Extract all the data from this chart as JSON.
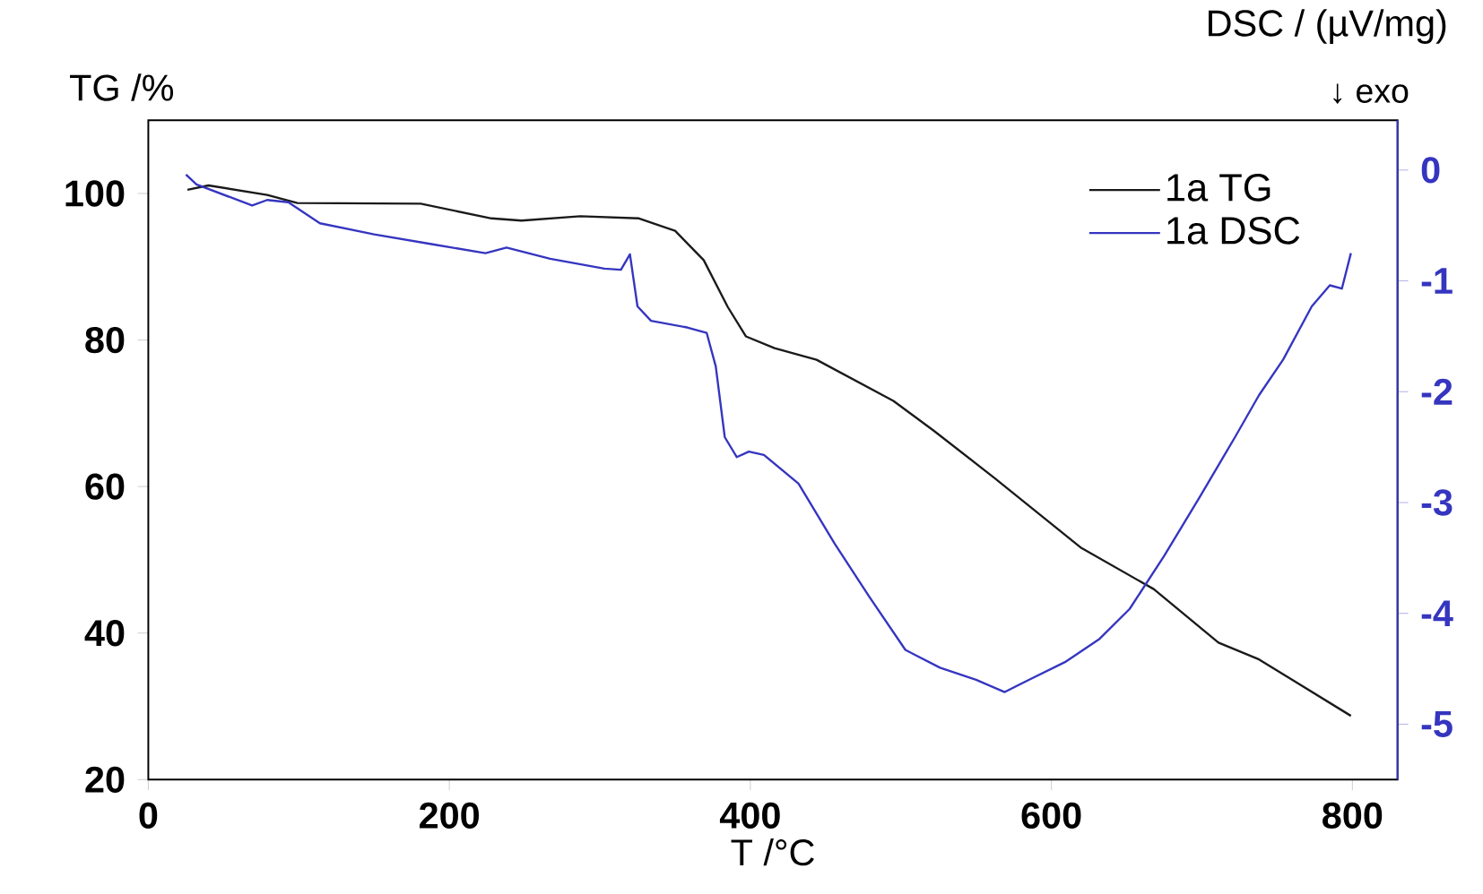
{
  "chart_data": {
    "type": "line",
    "xlabel": "T /°C",
    "ylabel": "TG /%",
    "y2label": "DSC / (µV/mg)",
    "annotations": [
      "↓ exo"
    ],
    "xlim": [
      0,
      830
    ],
    "xticks": [
      0,
      200,
      400,
      600,
      800
    ],
    "ylim": [
      20,
      110
    ],
    "yticks": [
      20,
      40,
      60,
      80,
      100
    ],
    "y2lim": [
      -5.5,
      0.45
    ],
    "y2ticks": [
      -5,
      -4,
      -3,
      -2,
      -1,
      0
    ],
    "legend": "top right",
    "series": [
      {
        "name": "1a TG",
        "color": "#1a1a1a",
        "x": [
          26,
          40,
          79,
          99,
          181,
          228,
          248,
          287,
          326,
          350,
          369,
          385,
          397,
          416,
          444,
          495,
          522,
          562,
          620,
          668,
          711,
          738,
          799
        ],
        "values": [
          100.5,
          101.1,
          99.8,
          98.7,
          98.6,
          96.6,
          96.3,
          96.9,
          96.6,
          94.9,
          90.9,
          84.5,
          80.5,
          78.9,
          77.3,
          71.7,
          67.6,
          61.2,
          51.6,
          46.0,
          38.7,
          36.4,
          28.7
        ]
      },
      {
        "name": "1a DSC",
        "color": "#3535c0",
        "axis": "y2",
        "x": [
          25,
          32,
          69,
          79,
          93,
          114,
          150,
          189,
          224,
          238,
          267,
          303,
          314,
          320,
          325,
          334,
          358,
          371,
          377,
          383,
          391,
          399,
          409,
          432,
          456,
          479,
          503,
          526,
          550,
          569,
          585,
          609,
          632,
          652,
          675,
          699,
          722,
          738,
          754,
          773,
          785,
          793,
          799
        ],
        "values": [
          -0.04,
          -0.13,
          -0.32,
          -0.27,
          -0.29,
          -0.48,
          -0.58,
          -0.67,
          -0.75,
          -0.7,
          -0.8,
          -0.89,
          -0.9,
          -0.76,
          -1.23,
          -1.36,
          -1.42,
          -1.47,
          -1.77,
          -2.41,
          -2.59,
          -2.54,
          -2.57,
          -2.83,
          -3.37,
          -3.85,
          -4.33,
          -4.49,
          -4.6,
          -4.71,
          -4.6,
          -4.44,
          -4.23,
          -3.96,
          -3.48,
          -2.94,
          -2.41,
          -2.03,
          -1.71,
          -1.23,
          -1.04,
          -1.07,
          -0.75
        ]
      }
    ]
  }
}
